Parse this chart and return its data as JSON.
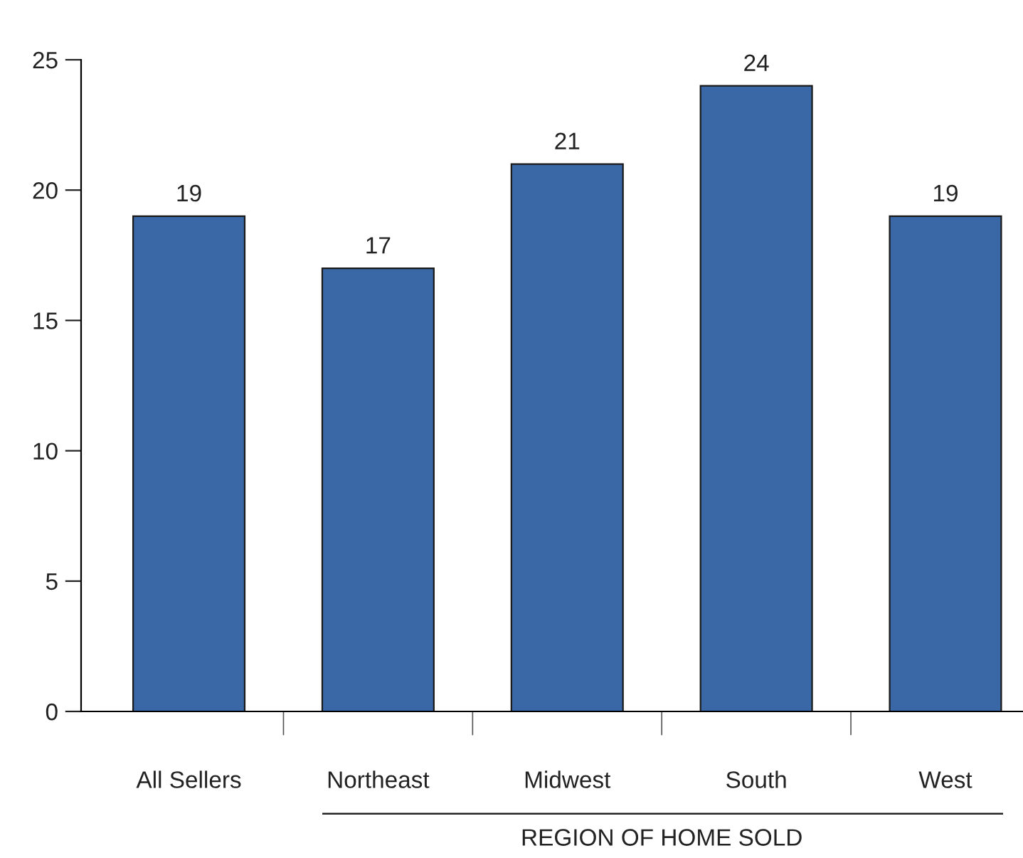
{
  "chart_data": {
    "type": "bar",
    "xlabel": "REGION OF HOME SOLD",
    "categories": [
      "All Sellers",
      "Northeast",
      "Midwest",
      "South",
      "West"
    ],
    "values": [
      19,
      17,
      21,
      24,
      19
    ],
    "color": "#3a67a6",
    "ylim": [
      0,
      25
    ],
    "yticks": [
      0,
      5,
      10,
      15,
      20,
      25
    ],
    "grid": false,
    "data_labels": true
  }
}
